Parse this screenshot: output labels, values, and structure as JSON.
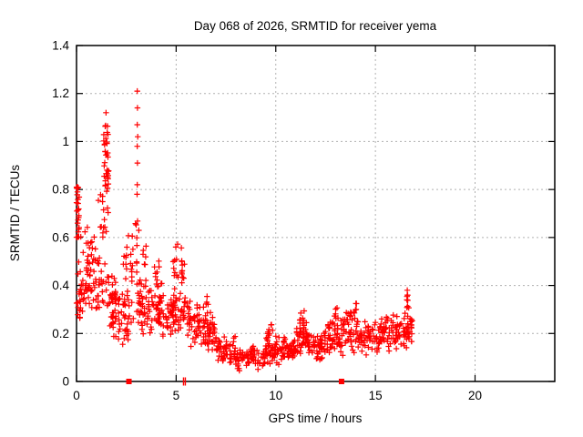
{
  "window": {
    "background": "#ffffff"
  },
  "chart_data": {
    "type": "scatter",
    "title": "Day 068 of 2026, SRMTID for receiver yema",
    "xlabel": "GPS time / hours",
    "ylabel": "SRMTID / TECUs",
    "xlim": [
      0,
      24
    ],
    "ylim": [
      0,
      1.4
    ],
    "xticks": [
      0,
      5,
      10,
      15,
      20
    ],
    "yticks": [
      0,
      0.2,
      0.4,
      0.6,
      0.8,
      1,
      1.2,
      1.4
    ],
    "grid": true,
    "grid_style": "dotted-gray",
    "grid_color": "#b0b0b0",
    "legend": "none",
    "marker": "plus",
    "marker_color": "#ff0000",
    "axis_color": "#000000",
    "series_name": "SRMTID",
    "x_data_start": 0,
    "x_data_end": 16.9,
    "notable_points": [
      [
        0.02,
        0.81
      ],
      [
        0.05,
        0.79
      ],
      [
        1.48,
        1.12
      ],
      [
        3.05,
        1.21
      ],
      [
        3.06,
        1.14
      ],
      [
        3.05,
        1.07
      ],
      [
        3.07,
        1.02
      ],
      [
        3.05,
        0.98
      ],
      [
        3.06,
        0.91
      ],
      [
        3.05,
        0.82
      ],
      [
        3.04,
        0.78
      ],
      [
        16.6,
        0.38
      ],
      [
        16.61,
        0.36
      ],
      [
        16.58,
        0.34
      ]
    ],
    "band_segments": [
      [
        0.0,
        0.15,
        22,
        0.6,
        0.81,
        0
      ],
      [
        0.0,
        0.2,
        14,
        0.26,
        0.5,
        0
      ],
      [
        0.05,
        0.5,
        20,
        0.28,
        0.48,
        1
      ],
      [
        0.2,
        0.6,
        10,
        0.45,
        0.66,
        0
      ],
      [
        0.5,
        1.15,
        34,
        0.26,
        0.56,
        1
      ],
      [
        0.6,
        1.0,
        8,
        0.5,
        0.68,
        0
      ],
      [
        1.05,
        1.35,
        20,
        0.3,
        0.78,
        0
      ],
      [
        1.35,
        1.62,
        30,
        0.55,
        1.12,
        1
      ],
      [
        1.38,
        1.6,
        12,
        0.8,
        1.05,
        0
      ],
      [
        1.35,
        1.7,
        10,
        0.3,
        0.55,
        0
      ],
      [
        1.65,
        2.15,
        40,
        0.15,
        0.46,
        1
      ],
      [
        2.1,
        2.6,
        32,
        0.15,
        0.42,
        1
      ],
      [
        2.35,
        2.55,
        8,
        0.42,
        0.56,
        0
      ],
      [
        2.6,
        2.85,
        16,
        0.2,
        0.62,
        0
      ],
      [
        2.95,
        3.15,
        14,
        0.28,
        0.75,
        0
      ],
      [
        3.1,
        3.65,
        40,
        0.18,
        0.46,
        1
      ],
      [
        3.3,
        3.55,
        6,
        0.46,
        0.6,
        0
      ],
      [
        3.65,
        4.35,
        46,
        0.16,
        0.44,
        1
      ],
      [
        3.9,
        4.15,
        7,
        0.42,
        0.52,
        0
      ],
      [
        4.35,
        5.0,
        44,
        0.15,
        0.4,
        1
      ],
      [
        4.85,
        5.1,
        10,
        0.35,
        0.58,
        0
      ],
      [
        5.0,
        5.5,
        26,
        0.18,
        0.45,
        1
      ],
      [
        5.25,
        5.45,
        8,
        0.4,
        0.56,
        0
      ],
      [
        5.5,
        6.2,
        42,
        0.14,
        0.36,
        1
      ],
      [
        6.2,
        7.0,
        48,
        0.11,
        0.3,
        1
      ],
      [
        6.35,
        6.6,
        6,
        0.28,
        0.36,
        0
      ],
      [
        7.0,
        8.0,
        55,
        0.06,
        0.2,
        1
      ],
      [
        8.0,
        9.5,
        75,
        0.04,
        0.16,
        1
      ],
      [
        9.5,
        10.3,
        48,
        0.06,
        0.2,
        1
      ],
      [
        9.6,
        9.95,
        8,
        0.18,
        0.24,
        0
      ],
      [
        10.3,
        11.05,
        48,
        0.07,
        0.2,
        1
      ],
      [
        11.05,
        11.65,
        42,
        0.1,
        0.26,
        1
      ],
      [
        11.2,
        11.55,
        8,
        0.24,
        0.3,
        0
      ],
      [
        11.65,
        12.35,
        44,
        0.07,
        0.22,
        1
      ],
      [
        12.35,
        13.25,
        52,
        0.1,
        0.28,
        1
      ],
      [
        12.9,
        13.1,
        6,
        0.26,
        0.32,
        0
      ],
      [
        13.25,
        14.25,
        55,
        0.1,
        0.3,
        1
      ],
      [
        13.75,
        14.1,
        8,
        0.28,
        0.34,
        0
      ],
      [
        14.25,
        15.25,
        55,
        0.1,
        0.27,
        1
      ],
      [
        15.25,
        16.25,
        60,
        0.12,
        0.3,
        1
      ],
      [
        16.25,
        16.9,
        42,
        0.12,
        0.3,
        1
      ],
      [
        16.5,
        16.68,
        7,
        0.26,
        0.38,
        0
      ]
    ],
    "axis_markers": {
      "square_marks_x": [
        2.63,
        13.3
      ],
      "bar_marks_x": [
        5.37,
        5.46
      ]
    }
  }
}
